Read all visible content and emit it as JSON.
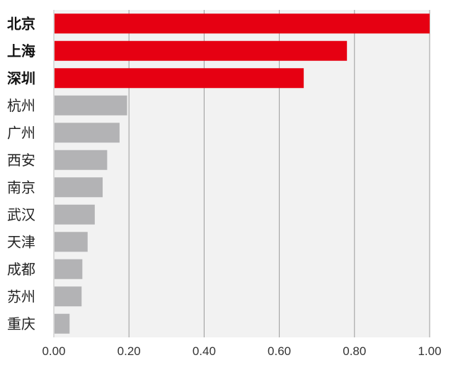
{
  "chart_data": {
    "type": "bar",
    "orientation": "horizontal",
    "categories": [
      "北京",
      "上海",
      "深圳",
      "杭州",
      "广州",
      "西安",
      "南京",
      "武汉",
      "天津",
      "成都",
      "苏州",
      "重庆"
    ],
    "values": [
      1.0,
      0.78,
      0.665,
      0.195,
      0.175,
      0.142,
      0.13,
      0.109,
      0.09,
      0.076,
      0.074,
      0.042
    ],
    "highlighted": [
      true,
      true,
      true,
      false,
      false,
      false,
      false,
      false,
      false,
      false,
      false,
      false
    ],
    "xlim": [
      0,
      1.0
    ],
    "xticks": [
      "0.00",
      "0.20",
      "0.40",
      "0.60",
      "0.80",
      "1.00"
    ],
    "grid": true,
    "legend": "none",
    "colors": {
      "highlight": "#e60012",
      "normal": "#b3b3b5",
      "plot_background": "#f2f2f2",
      "gridline": "#9a9a9a"
    }
  }
}
